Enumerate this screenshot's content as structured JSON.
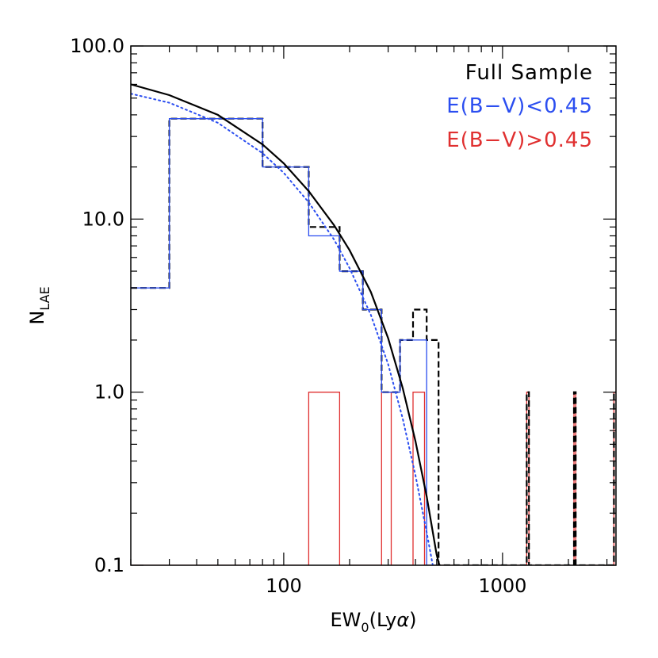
{
  "chart_data": {
    "type": "histogram",
    "title": "",
    "xlabel": {
      "prefix": "EW",
      "sub": "0",
      "suffix": "(Ly",
      "greek": "α",
      "close": ")"
    },
    "ylabel": {
      "main": "N",
      "sub": "LAE"
    },
    "x_scale": "log",
    "y_scale": "log",
    "xlim": [
      20,
      3300
    ],
    "ylim": [
      0.1,
      100
    ],
    "x_ticks": [
      {
        "value": 100,
        "label": "100"
      },
      {
        "value": 1000,
        "label": "1000"
      }
    ],
    "y_ticks": [
      {
        "value": 0.1,
        "label": "0.1"
      },
      {
        "value": 1,
        "label": "1.0"
      },
      {
        "value": 10,
        "label": "10.0"
      },
      {
        "value": 100,
        "label": "100.0"
      }
    ],
    "legend": {
      "placement": "top-right",
      "entries": [
        {
          "label": "Full Sample",
          "color": "#000000"
        },
        {
          "label": "E(B−V)<0.45",
          "color": "#2b4ef0"
        },
        {
          "label": "E(B−V)>0.45",
          "color": "#e03030"
        }
      ]
    },
    "series": [
      {
        "name": "Full Sample",
        "style": "step-dashed",
        "color": "#000000",
        "edges": [
          20,
          30,
          80,
          130,
          180,
          230,
          280,
          340,
          390,
          450,
          510,
          1290,
          1320,
          2120,
          2160,
          3230,
          3300
        ],
        "counts": [
          4,
          38,
          20,
          9,
          5,
          3,
          1,
          2,
          3,
          2,
          0.1,
          1,
          0.1,
          1,
          0.1,
          1
        ]
      },
      {
        "name": "E(B−V)<0.45",
        "style": "step-solid",
        "color": "#2b4ef0",
        "edges": [
          20,
          30,
          80,
          130,
          180,
          230,
          280,
          340,
          450,
          510
        ],
        "counts": [
          4,
          38,
          20,
          8,
          5,
          3,
          1,
          2,
          0.1
        ]
      },
      {
        "name": "E(B−V)>0.45",
        "style": "step-solid",
        "color": "#e03030",
        "edges": [
          20,
          130,
          180,
          280,
          310,
          340,
          390,
          440,
          1290,
          1320,
          2120,
          2160,
          3230,
          3300
        ],
        "counts": [
          0.1,
          1,
          0.1,
          1,
          0.1,
          0.1,
          1,
          0.1,
          1,
          0.1,
          1,
          0.1,
          1
        ]
      }
    ],
    "fits": [
      {
        "style": "solid",
        "color": "#000000",
        "x": [
          20,
          30,
          50,
          80,
          100,
          130,
          170,
          200,
          250,
          300,
          350,
          400,
          450,
          500,
          520
        ],
        "y": [
          60,
          52,
          40,
          27,
          21,
          14.5,
          9.2,
          6.6,
          3.8,
          2.05,
          1.05,
          0.52,
          0.25,
          0.115,
          0.095
        ]
      },
      {
        "style": "dotted",
        "color": "#2b4ef0",
        "x": [
          20,
          30,
          50,
          80,
          100,
          130,
          170,
          200,
          250,
          300,
          350,
          400,
          450,
          480
        ],
        "y": [
          53,
          47,
          36,
          24,
          18.5,
          12.5,
          7.6,
          5.2,
          2.8,
          1.45,
          0.7,
          0.33,
          0.155,
          0.1
        ]
      }
    ]
  }
}
